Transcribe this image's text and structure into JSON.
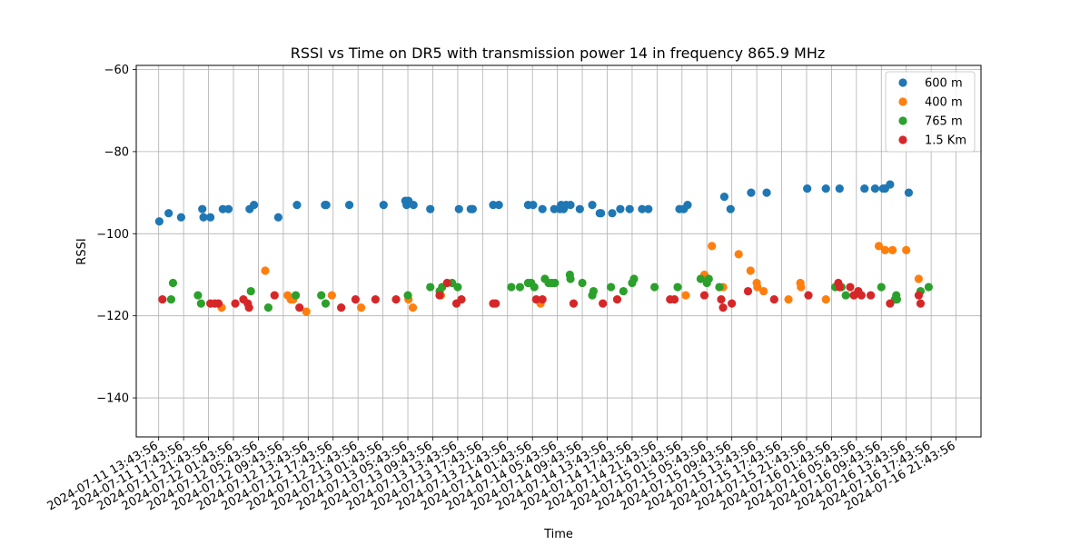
{
  "chart_data": {
    "type": "scatter",
    "title": "RSSI vs Time on DR5 with transmission power 14 in frequency 865.9 MHz",
    "xlabel": "Time",
    "ylabel": "RSSI",
    "x_unit": "hours since 2024-07-11 13:43:56",
    "xlim": [
      -3.6,
      132
    ],
    "ylim": [
      -149.5,
      -59
    ],
    "grid": true,
    "legend_position": "top-right",
    "x_ticks": [
      {
        "value": 0,
        "label": "2024-07-11 13:43:56"
      },
      {
        "value": 4,
        "label": "2024-07-11 17:43:56"
      },
      {
        "value": 8,
        "label": "2024-07-11 21:43:56"
      },
      {
        "value": 12,
        "label": "2024-07-12 01:43:56"
      },
      {
        "value": 16,
        "label": "2024-07-12 05:43:56"
      },
      {
        "value": 20,
        "label": "2024-07-12 09:43:56"
      },
      {
        "value": 24,
        "label": "2024-07-12 13:43:56"
      },
      {
        "value": 28,
        "label": "2024-07-12 17:43:56"
      },
      {
        "value": 32,
        "label": "2024-07-12 21:43:56"
      },
      {
        "value": 36,
        "label": "2024-07-13 01:43:56"
      },
      {
        "value": 40,
        "label": "2024-07-13 05:43:56"
      },
      {
        "value": 44,
        "label": "2024-07-13 09:43:56"
      },
      {
        "value": 48,
        "label": "2024-07-13 13:43:56"
      },
      {
        "value": 52,
        "label": "2024-07-13 17:43:56"
      },
      {
        "value": 56,
        "label": "2024-07-13 21:43:56"
      },
      {
        "value": 60,
        "label": "2024-07-14 01:43:56"
      },
      {
        "value": 64,
        "label": "2024-07-14 05:43:56"
      },
      {
        "value": 68,
        "label": "2024-07-14 09:43:56"
      },
      {
        "value": 72,
        "label": "2024-07-14 13:43:56"
      },
      {
        "value": 76,
        "label": "2024-07-14 17:43:56"
      },
      {
        "value": 80,
        "label": "2024-07-14 21:43:56"
      },
      {
        "value": 84,
        "label": "2024-07-15 01:43:56"
      },
      {
        "value": 88,
        "label": "2024-07-15 05:43:56"
      },
      {
        "value": 92,
        "label": "2024-07-15 09:43:56"
      },
      {
        "value": 96,
        "label": "2024-07-15 13:43:56"
      },
      {
        "value": 100,
        "label": "2024-07-15 17:43:56"
      },
      {
        "value": 104,
        "label": "2024-07-15 21:43:56"
      },
      {
        "value": 108,
        "label": "2024-07-16 01:43:56"
      },
      {
        "value": 112,
        "label": "2024-07-16 05:43:56"
      },
      {
        "value": 116,
        "label": "2024-07-16 09:43:56"
      },
      {
        "value": 120,
        "label": "2024-07-16 13:43:56"
      },
      {
        "value": 124,
        "label": "2024-07-16 17:43:56"
      },
      {
        "value": 128,
        "label": "2024-07-16 21:43:56"
      }
    ],
    "y_ticks": [
      {
        "value": -60,
        "label": "−60"
      },
      {
        "value": -80,
        "label": "−80"
      },
      {
        "value": -100,
        "label": "−100"
      },
      {
        "value": -120,
        "label": "−120"
      },
      {
        "value": -140,
        "label": "−140"
      }
    ],
    "series": [
      {
        "name": "600 m",
        "color": "#1f77b4",
        "points": [
          [
            0.1,
            -97
          ],
          [
            1.6,
            -95
          ],
          [
            3.6,
            -96
          ],
          [
            7.0,
            -94
          ],
          [
            7.2,
            -96
          ],
          [
            8.3,
            -96
          ],
          [
            10.3,
            -94
          ],
          [
            11.2,
            -94
          ],
          [
            14.6,
            -94
          ],
          [
            15.3,
            -93
          ],
          [
            19.2,
            -96
          ],
          [
            22.2,
            -93
          ],
          [
            26.7,
            -93
          ],
          [
            26.9,
            -93
          ],
          [
            30.6,
            -93
          ],
          [
            36.1,
            -93
          ],
          [
            39.6,
            -92
          ],
          [
            39.8,
            -93
          ],
          [
            40.1,
            -92
          ],
          [
            40.9,
            -93
          ],
          [
            43.6,
            -94
          ],
          [
            48.2,
            -94
          ],
          [
            50.1,
            -94
          ],
          [
            50.4,
            -94
          ],
          [
            53.7,
            -93
          ],
          [
            54.6,
            -93
          ],
          [
            59.3,
            -93
          ],
          [
            60.1,
            -93
          ],
          [
            61.6,
            -94
          ],
          [
            63.5,
            -94
          ],
          [
            64.4,
            -94
          ],
          [
            64.6,
            -93
          ],
          [
            65.0,
            -94
          ],
          [
            65.4,
            -93
          ],
          [
            66.1,
            -93
          ],
          [
            67.6,
            -94
          ],
          [
            69.6,
            -93
          ],
          [
            70.8,
            -95
          ],
          [
            71.0,
            -95
          ],
          [
            72.8,
            -95
          ],
          [
            74.1,
            -94
          ],
          [
            75.6,
            -94
          ],
          [
            77.6,
            -94
          ],
          [
            78.6,
            -94
          ],
          [
            83.6,
            -94
          ],
          [
            84.3,
            -94
          ],
          [
            84.9,
            -93
          ],
          [
            90.8,
            -91
          ],
          [
            91.8,
            -94
          ],
          [
            95.1,
            -90
          ],
          [
            97.6,
            -90
          ],
          [
            104.1,
            -89
          ],
          [
            107.1,
            -89
          ],
          [
            109.3,
            -89
          ],
          [
            113.3,
            -89
          ],
          [
            115.0,
            -89
          ],
          [
            116.3,
            -89
          ],
          [
            116.6,
            -89
          ],
          [
            117.4,
            -88
          ],
          [
            120.4,
            -90
          ]
        ]
      },
      {
        "name": "400 m",
        "color": "#ff7f0e",
        "points": [
          [
            10.1,
            -118
          ],
          [
            17.1,
            -109
          ],
          [
            20.7,
            -115
          ],
          [
            21.2,
            -116
          ],
          [
            21.6,
            -116
          ],
          [
            23.7,
            -119
          ],
          [
            27.8,
            -115
          ],
          [
            32.5,
            -118
          ],
          [
            40.1,
            -116
          ],
          [
            40.8,
            -118
          ],
          [
            45.3,
            -115
          ],
          [
            61.3,
            -117
          ],
          [
            84.6,
            -115
          ],
          [
            87.6,
            -110
          ],
          [
            88.8,
            -103
          ],
          [
            90.6,
            -113
          ],
          [
            93.1,
            -105
          ],
          [
            95.0,
            -109
          ],
          [
            96.0,
            -112
          ],
          [
            96.1,
            -113
          ],
          [
            97.1,
            -114
          ],
          [
            101.1,
            -116
          ],
          [
            103.0,
            -112
          ],
          [
            103.1,
            -113
          ],
          [
            107.1,
            -116
          ],
          [
            115.6,
            -103
          ],
          [
            116.6,
            -104
          ],
          [
            117.8,
            -104
          ],
          [
            120.0,
            -104
          ],
          [
            122.0,
            -111
          ]
        ]
      },
      {
        "name": "765 m",
        "color": "#2ca02c",
        "points": [
          [
            2.0,
            -116
          ],
          [
            2.3,
            -112
          ],
          [
            6.3,
            -115
          ],
          [
            6.8,
            -117
          ],
          [
            14.8,
            -114
          ],
          [
            17.6,
            -118
          ],
          [
            22.0,
            -115
          ],
          [
            26.1,
            -115
          ],
          [
            26.8,
            -117
          ],
          [
            40.0,
            -115
          ],
          [
            43.6,
            -113
          ],
          [
            45.1,
            -114
          ],
          [
            45.5,
            -113
          ],
          [
            47.1,
            -112
          ],
          [
            48.0,
            -113
          ],
          [
            56.6,
            -113
          ],
          [
            58.0,
            -113
          ],
          [
            59.3,
            -112
          ],
          [
            59.8,
            -112
          ],
          [
            60.3,
            -113
          ],
          [
            62.0,
            -111
          ],
          [
            62.6,
            -112
          ],
          [
            63.1,
            -112
          ],
          [
            63.6,
            -112
          ],
          [
            66.0,
            -110
          ],
          [
            66.1,
            -111
          ],
          [
            68.0,
            -112
          ],
          [
            69.6,
            -115
          ],
          [
            69.8,
            -114
          ],
          [
            72.6,
            -113
          ],
          [
            74.6,
            -114
          ],
          [
            76.0,
            -112
          ],
          [
            76.3,
            -111
          ],
          [
            79.6,
            -113
          ],
          [
            83.3,
            -113
          ],
          [
            87.0,
            -111
          ],
          [
            88.0,
            -112
          ],
          [
            88.3,
            -111
          ],
          [
            90.0,
            -113
          ],
          [
            108.6,
            -113
          ],
          [
            109.6,
            -113
          ],
          [
            110.3,
            -115
          ],
          [
            111.6,
            -115
          ],
          [
            116.0,
            -113
          ],
          [
            118.2,
            -116
          ],
          [
            118.4,
            -115
          ],
          [
            118.5,
            -116
          ],
          [
            122.3,
            -114
          ],
          [
            123.6,
            -113
          ]
        ]
      },
      {
        "name": "1.5 Km",
        "color": "#d62728",
        "points": [
          [
            0.6,
            -116
          ],
          [
            8.3,
            -117
          ],
          [
            9.0,
            -117
          ],
          [
            9.6,
            -117
          ],
          [
            12.3,
            -117
          ],
          [
            13.6,
            -116
          ],
          [
            14.3,
            -117
          ],
          [
            14.5,
            -118
          ],
          [
            18.6,
            -115
          ],
          [
            22.6,
            -118
          ],
          [
            29.3,
            -118
          ],
          [
            31.6,
            -116
          ],
          [
            34.8,
            -116
          ],
          [
            38.1,
            -116
          ],
          [
            45.1,
            -115
          ],
          [
            46.3,
            -112
          ],
          [
            47.8,
            -117
          ],
          [
            48.6,
            -116
          ],
          [
            53.7,
            -117
          ],
          [
            54.1,
            -117
          ],
          [
            60.6,
            -116
          ],
          [
            61.6,
            -116
          ],
          [
            66.6,
            -117
          ],
          [
            71.3,
            -117
          ],
          [
            73.6,
            -116
          ],
          [
            82.1,
            -116
          ],
          [
            82.8,
            -116
          ],
          [
            87.6,
            -115
          ],
          [
            90.3,
            -116
          ],
          [
            90.6,
            -118
          ],
          [
            92.0,
            -117
          ],
          [
            94.6,
            -114
          ],
          [
            98.8,
            -116
          ],
          [
            104.3,
            -115
          ],
          [
            109.1,
            -112
          ],
          [
            109.3,
            -113
          ],
          [
            111.0,
            -113
          ],
          [
            111.6,
            -115
          ],
          [
            112.3,
            -114
          ],
          [
            112.8,
            -115
          ],
          [
            114.3,
            -115
          ],
          [
            117.4,
            -117
          ],
          [
            122.0,
            -115
          ],
          [
            122.3,
            -117
          ]
        ]
      }
    ]
  }
}
